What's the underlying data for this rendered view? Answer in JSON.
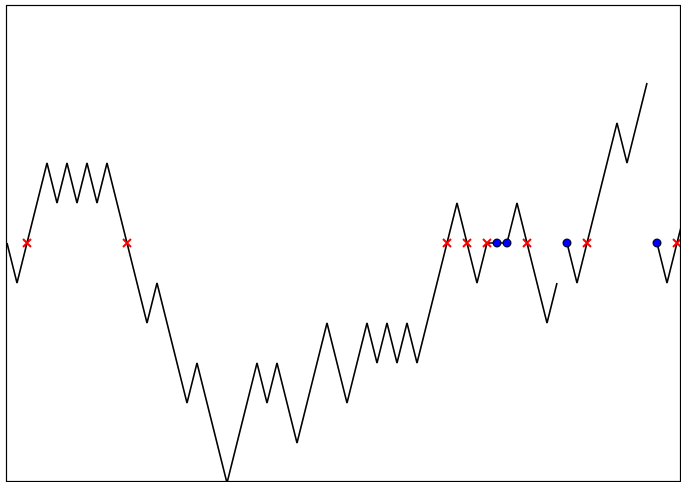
{
  "chart_data": {
    "type": "line",
    "title": "",
    "xlabel": "",
    "ylabel": "",
    "grid": false,
    "xlim": [
      0,
      67.5
    ],
    "ylim": [
      -6,
      6
    ],
    "line_color": "#000000",
    "series": [
      {
        "segments": [
          [
            [
              0,
              0
            ],
            [
              1,
              -1
            ],
            [
              2,
              0
            ],
            [
              3,
              1
            ],
            [
              4,
              2
            ],
            [
              5,
              1
            ],
            [
              6,
              2
            ],
            [
              7,
              1
            ],
            [
              8,
              2
            ],
            [
              9,
              1
            ],
            [
              10,
              2
            ],
            [
              11,
              1
            ],
            [
              12,
              0
            ],
            [
              13,
              -1
            ],
            [
              14,
              -2
            ],
            [
              15,
              -1
            ],
            [
              16,
              -2
            ],
            [
              17,
              -3
            ],
            [
              18,
              -4
            ],
            [
              19,
              -3
            ],
            [
              20,
              -4
            ],
            [
              21,
              -5
            ],
            [
              22,
              -6
            ],
            [
              23,
              -5
            ],
            [
              24,
              -4
            ],
            [
              25,
              -3
            ],
            [
              26,
              -4
            ],
            [
              27,
              -3
            ],
            [
              28,
              -4
            ],
            [
              29,
              -5
            ],
            [
              30,
              -4
            ],
            [
              31,
              -3
            ],
            [
              32,
              -2
            ],
            [
              33,
              -3
            ],
            [
              34,
              -4
            ],
            [
              35,
              -3
            ],
            [
              36,
              -2
            ],
            [
              37,
              -3
            ],
            [
              38,
              -2
            ],
            [
              39,
              -3
            ],
            [
              40,
              -2
            ],
            [
              41,
              -3
            ],
            [
              42,
              -2
            ],
            [
              43,
              -1
            ],
            [
              44,
              0
            ],
            [
              45,
              1
            ],
            [
              46,
              0
            ],
            [
              47,
              -1
            ],
            [
              48,
              0
            ],
            [
              49,
              0
            ],
            [
              50,
              0
            ],
            [
              51,
              1
            ],
            [
              52,
              0
            ],
            [
              53,
              -1
            ],
            [
              54,
              -2
            ],
            [
              55,
              -1
            ]
          ],
          [
            [
              56,
              0
            ],
            [
              57,
              -1
            ],
            [
              58,
              0
            ],
            [
              59,
              1
            ],
            [
              60,
              2
            ],
            [
              61,
              3
            ],
            [
              62,
              2
            ],
            [
              63,
              3
            ],
            [
              64,
              4
            ]
          ],
          [
            [
              65,
              0
            ],
            [
              66,
              -1
            ],
            [
              67,
              0
            ],
            [
              68,
              1
            ]
          ]
        ]
      }
    ],
    "cross_markers": {
      "color": "#ff0000",
      "points": [
        [
          2,
          0
        ],
        [
          12,
          0
        ],
        [
          44,
          0
        ],
        [
          46,
          0
        ],
        [
          48,
          0
        ],
        [
          52,
          0
        ],
        [
          58,
          0
        ],
        [
          67,
          0
        ]
      ]
    },
    "circle_markers": {
      "color": "#0000ff",
      "points": [
        [
          49,
          0
        ],
        [
          50,
          0
        ],
        [
          56,
          0
        ],
        [
          65,
          0
        ]
      ]
    }
  }
}
